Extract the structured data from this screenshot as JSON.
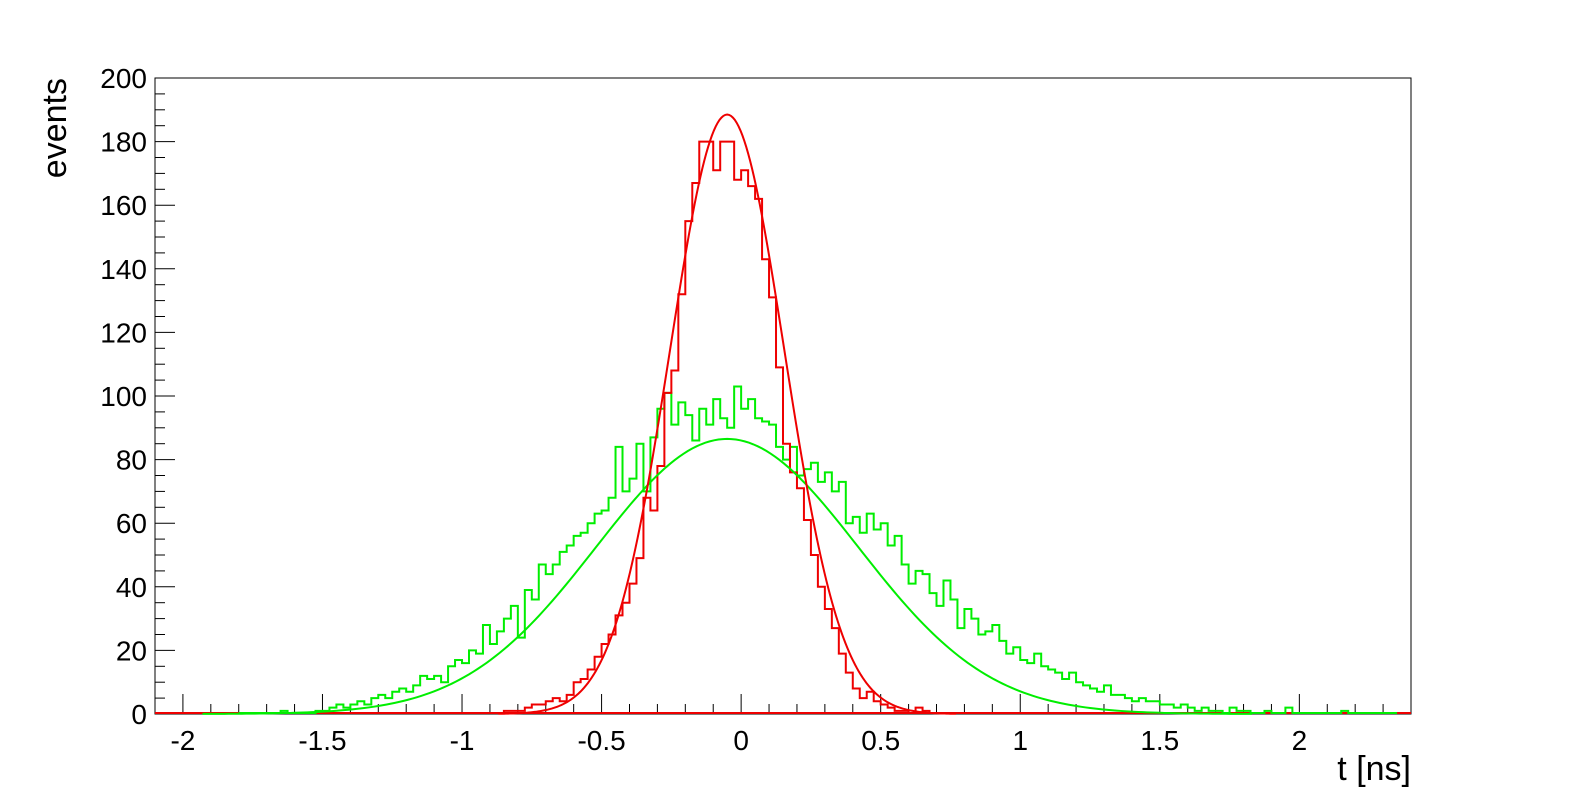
{
  "chart_data": {
    "type": "histogram",
    "xlabel": "t [ns]",
    "ylabel": "events",
    "xlim": [
      -2.1,
      2.4
    ],
    "ylim": [
      0,
      200
    ],
    "x_ticks": [
      "-2",
      "-1.5",
      "-1",
      "-0.5",
      "0",
      "0.5",
      "1",
      "1.5",
      "2"
    ],
    "y_ticks": [
      "0",
      "20",
      "40",
      "60",
      "80",
      "100",
      "120",
      "140",
      "160",
      "180",
      "200"
    ],
    "bin_width": 0.025,
    "grid": false,
    "series": [
      {
        "color": "#00ee00",
        "bins_x_start": -1.8,
        "values": [
          0,
          0,
          0,
          0,
          0,
          0,
          1,
          0,
          0,
          0,
          0,
          1,
          1,
          2,
          3,
          2,
          3,
          4,
          3,
          5,
          6,
          5,
          7,
          8,
          7,
          9,
          12,
          11,
          12,
          10,
          15,
          17,
          16,
          20,
          19,
          28,
          22,
          26,
          30,
          34,
          24,
          39,
          36,
          47,
          44,
          47,
          51,
          53,
          56,
          57,
          60,
          63,
          64,
          68,
          84,
          70,
          74,
          85,
          70,
          87,
          96,
          101,
          91,
          98,
          94,
          86,
          96,
          91,
          99,
          93,
          90,
          103,
          96,
          99,
          93,
          92,
          91,
          84,
          80,
          84,
          75,
          77,
          79,
          73,
          76,
          70,
          73,
          60,
          62,
          57,
          63,
          58,
          60,
          53,
          56,
          47,
          41,
          45,
          44,
          38,
          34,
          42,
          36,
          27,
          33,
          30,
          25,
          26,
          28,
          23,
          19,
          21,
          17,
          16,
          19,
          15,
          14,
          13,
          11,
          13,
          10,
          9,
          8,
          7,
          9,
          6,
          6,
          5,
          4,
          5,
          4,
          4,
          3,
          3,
          2,
          3,
          2,
          1,
          2,
          1,
          1,
          0,
          2,
          1,
          1,
          0,
          0,
          1,
          0,
          0,
          2,
          0,
          0,
          0,
          0,
          0,
          0,
          0,
          1,
          0,
          0,
          0,
          0,
          0,
          0,
          0
        ]
      },
      {
        "color": "#ee0000",
        "bins_x_start": -0.95,
        "values": [
          0,
          0,
          0,
          0,
          1,
          1,
          1,
          2,
          3,
          3,
          4,
          5,
          4,
          6,
          10,
          11,
          14,
          18,
          22,
          25,
          31,
          35,
          41,
          49,
          68,
          64,
          78,
          101,
          108,
          132,
          155,
          167,
          180,
          180,
          171,
          180,
          180,
          168,
          171,
          166,
          162,
          143,
          131,
          109,
          85,
          76,
          71,
          61,
          50,
          40,
          33,
          27,
          19,
          13,
          8,
          5,
          7,
          4,
          3,
          2,
          1,
          1,
          0,
          2,
          1,
          0,
          0,
          0,
          0,
          0
        ]
      }
    ],
    "fits": [
      {
        "color": "#00ee00",
        "amplitude": 86.5,
        "mean": -0.05,
        "sigma": 0.47
      },
      {
        "color": "#ee0000",
        "amplitude": 188.5,
        "mean": -0.05,
        "sigma": 0.205
      }
    ]
  }
}
